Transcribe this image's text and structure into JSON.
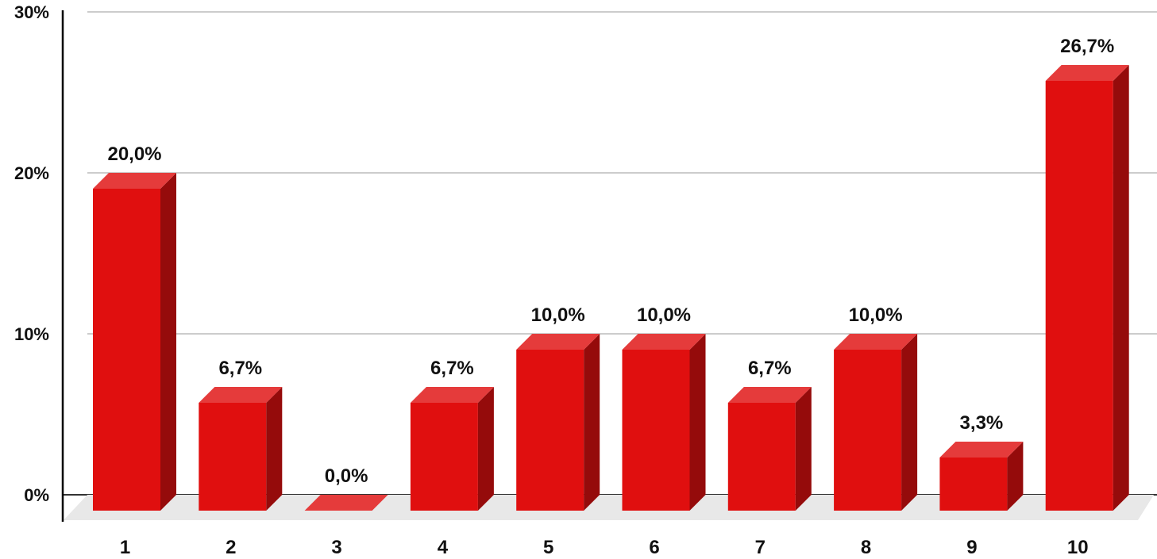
{
  "chart_data": {
    "type": "bar",
    "categories": [
      "1",
      "2",
      "3",
      "4",
      "5",
      "6",
      "7",
      "8",
      "9",
      "10"
    ],
    "values": [
      20.0,
      6.7,
      0.0,
      6.7,
      10.0,
      10.0,
      6.7,
      10.0,
      3.3,
      26.7
    ],
    "data_labels": [
      "20,0%",
      "6,7%",
      "0,0%",
      "6,7%",
      "10,0%",
      "10,0%",
      "6,7%",
      "10,0%",
      "3,3%",
      "26,7%"
    ],
    "y_ticks": [
      {
        "value": 0,
        "label": "0%"
      },
      {
        "value": 10,
        "label": "10%"
      },
      {
        "value": 20,
        "label": "20%"
      },
      {
        "value": 30,
        "label": "30%"
      }
    ],
    "ylim": [
      0,
      30
    ],
    "title": "",
    "xlabel": "",
    "ylabel": "",
    "grid": true,
    "style": "3d-bar",
    "colors": {
      "bar_front": "#e00f0f",
      "bar_top": "#e53b3b",
      "bar_side": "#950b0b",
      "grid": "#cccccc",
      "floor": "#e8e8e8",
      "axis": "#000000",
      "text": "#111111"
    }
  }
}
